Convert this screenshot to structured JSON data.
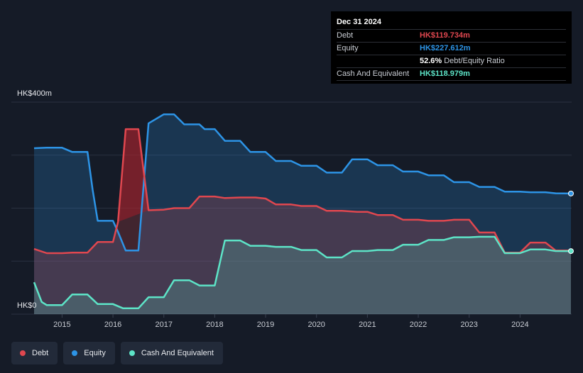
{
  "chart_data": {
    "type": "area",
    "ylabel_max": "HK$400m",
    "ylabel_min": "HK$0",
    "ylim": [
      0,
      400
    ],
    "x_ticks": [
      "2015",
      "2016",
      "2017",
      "2018",
      "2019",
      "2020",
      "2021",
      "2022",
      "2023",
      "2024"
    ],
    "x_range": [
      2014.45,
      2025.0
    ],
    "grid": true,
    "legend_position": "bottom-left",
    "series": [
      {
        "name": "Debt",
        "color": "#e0474f",
        "points": [
          [
            2014.45,
            123
          ],
          [
            2014.7,
            115
          ],
          [
            2015.0,
            115
          ],
          [
            2015.2,
            116
          ],
          [
            2015.5,
            116
          ],
          [
            2015.7,
            136
          ],
          [
            2016.0,
            136
          ],
          [
            2016.1,
            174
          ],
          [
            2016.25,
            349
          ],
          [
            2016.5,
            349
          ],
          [
            2016.7,
            196
          ],
          [
            2017.0,
            197
          ],
          [
            2017.2,
            200
          ],
          [
            2017.5,
            200
          ],
          [
            2017.7,
            222
          ],
          [
            2018.0,
            222
          ],
          [
            2018.2,
            219
          ],
          [
            2018.5,
            220
          ],
          [
            2018.8,
            220
          ],
          [
            2019.0,
            218
          ],
          [
            2019.2,
            207
          ],
          [
            2019.5,
            207
          ],
          [
            2019.7,
            204
          ],
          [
            2020.0,
            204
          ],
          [
            2020.2,
            195
          ],
          [
            2020.5,
            195
          ],
          [
            2020.8,
            193
          ],
          [
            2021.0,
            193
          ],
          [
            2021.2,
            187
          ],
          [
            2021.5,
            187
          ],
          [
            2021.7,
            178
          ],
          [
            2022.0,
            178
          ],
          [
            2022.2,
            176
          ],
          [
            2022.5,
            176
          ],
          [
            2022.7,
            178
          ],
          [
            2023.0,
            178
          ],
          [
            2023.2,
            154
          ],
          [
            2023.5,
            154
          ],
          [
            2023.7,
            116
          ],
          [
            2024.0,
            116
          ],
          [
            2024.2,
            135
          ],
          [
            2024.5,
            135
          ],
          [
            2024.7,
            120
          ],
          [
            2025.0,
            120
          ]
        ]
      },
      {
        "name": "Equity",
        "color": "#2d94e6",
        "points": [
          [
            2014.45,
            313
          ],
          [
            2014.7,
            314
          ],
          [
            2015.0,
            314
          ],
          [
            2015.2,
            306
          ],
          [
            2015.5,
            306
          ],
          [
            2015.6,
            235
          ],
          [
            2015.7,
            176
          ],
          [
            2016.0,
            176
          ],
          [
            2016.1,
            155
          ],
          [
            2016.25,
            120
          ],
          [
            2016.5,
            120
          ],
          [
            2016.7,
            360
          ],
          [
            2017.0,
            377
          ],
          [
            2017.2,
            377
          ],
          [
            2017.4,
            358
          ],
          [
            2017.7,
            358
          ],
          [
            2017.8,
            349
          ],
          [
            2018.0,
            349
          ],
          [
            2018.2,
            327
          ],
          [
            2018.5,
            327
          ],
          [
            2018.7,
            306
          ],
          [
            2019.0,
            306
          ],
          [
            2019.2,
            289
          ],
          [
            2019.5,
            289
          ],
          [
            2019.7,
            280
          ],
          [
            2020.0,
            280
          ],
          [
            2020.2,
            267
          ],
          [
            2020.5,
            267
          ],
          [
            2020.7,
            292
          ],
          [
            2021.0,
            292
          ],
          [
            2021.2,
            281
          ],
          [
            2021.5,
            281
          ],
          [
            2021.7,
            269
          ],
          [
            2022.0,
            269
          ],
          [
            2022.2,
            262
          ],
          [
            2022.5,
            262
          ],
          [
            2022.7,
            249
          ],
          [
            2023.0,
            249
          ],
          [
            2023.2,
            240
          ],
          [
            2023.5,
            240
          ],
          [
            2023.7,
            231
          ],
          [
            2024.0,
            231
          ],
          [
            2024.2,
            230
          ],
          [
            2024.5,
            230
          ],
          [
            2024.7,
            228
          ],
          [
            2025.0,
            227.612
          ]
        ]
      },
      {
        "name": "Cash And Equivalent",
        "color": "#5de4c7",
        "points": [
          [
            2014.45,
            60
          ],
          [
            2014.6,
            23
          ],
          [
            2014.7,
            17
          ],
          [
            2015.0,
            17
          ],
          [
            2015.2,
            37
          ],
          [
            2015.5,
            37
          ],
          [
            2015.7,
            19
          ],
          [
            2016.0,
            19
          ],
          [
            2016.2,
            11
          ],
          [
            2016.5,
            11
          ],
          [
            2016.7,
            32
          ],
          [
            2017.0,
            32
          ],
          [
            2017.2,
            64
          ],
          [
            2017.5,
            64
          ],
          [
            2017.7,
            54
          ],
          [
            2018.0,
            54
          ],
          [
            2018.2,
            139
          ],
          [
            2018.5,
            139
          ],
          [
            2018.7,
            129
          ],
          [
            2019.0,
            129
          ],
          [
            2019.2,
            127
          ],
          [
            2019.5,
            127
          ],
          [
            2019.7,
            121
          ],
          [
            2020.0,
            121
          ],
          [
            2020.2,
            107
          ],
          [
            2020.5,
            107
          ],
          [
            2020.7,
            119
          ],
          [
            2021.0,
            119
          ],
          [
            2021.2,
            121
          ],
          [
            2021.5,
            121
          ],
          [
            2021.7,
            131
          ],
          [
            2022.0,
            131
          ],
          [
            2022.2,
            140
          ],
          [
            2022.5,
            140
          ],
          [
            2022.7,
            145
          ],
          [
            2023.0,
            145
          ],
          [
            2023.2,
            146
          ],
          [
            2023.5,
            146
          ],
          [
            2023.7,
            115
          ],
          [
            2024.0,
            115
          ],
          [
            2024.2,
            122
          ],
          [
            2024.5,
            122
          ],
          [
            2024.7,
            119
          ],
          [
            2025.0,
            118.979
          ]
        ]
      }
    ]
  },
  "tooltip": {
    "date": "Dec 31 2024",
    "debt_label": "Debt",
    "debt_value": "HK$119.734m",
    "equity_label": "Equity",
    "equity_value": "HK$227.612m",
    "ratio_pct": "52.6%",
    "ratio_label": "Debt/Equity Ratio",
    "cash_label": "Cash And Equivalent",
    "cash_value": "HK$118.979m"
  },
  "legend": [
    {
      "label": "Debt",
      "color": "#e0474f"
    },
    {
      "label": "Equity",
      "color": "#2d94e6"
    },
    {
      "label": "Cash And Equivalent",
      "color": "#5de4c7"
    }
  ]
}
